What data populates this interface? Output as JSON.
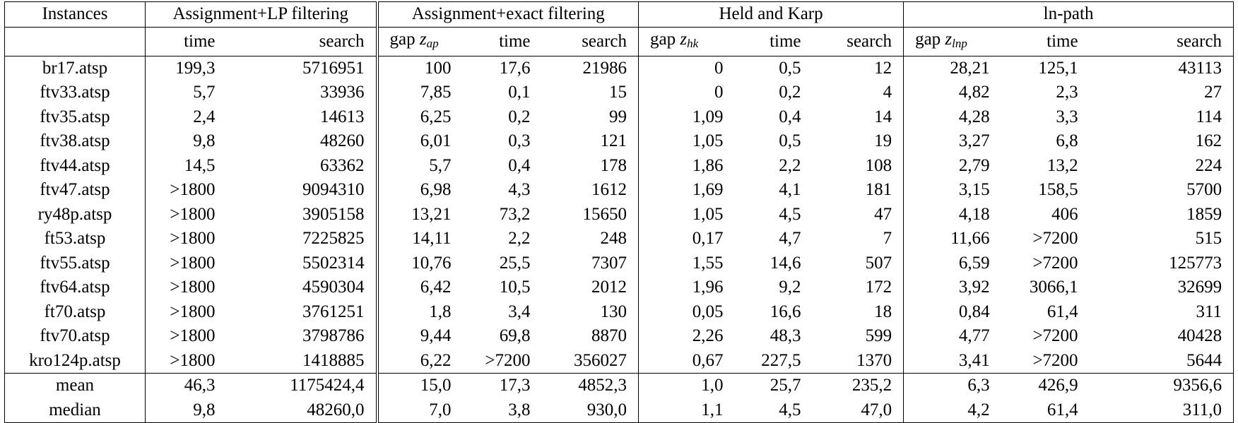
{
  "table": {
    "groups": [
      {
        "label": "Instances"
      },
      {
        "label": "Assignment+LP filtering"
      },
      {
        "label": "Assignment+exact filtering"
      },
      {
        "label": "Held and Karp"
      },
      {
        "label": "ln-path"
      }
    ],
    "subheaders": {
      "lp": [
        "time",
        "search"
      ],
      "exact": {
        "gap": "gap",
        "gap_var": "z",
        "gap_sub": "ap",
        "time": "time",
        "search": "search"
      },
      "hk": {
        "gap": "gap",
        "gap_var": "z",
        "gap_sub": "hk",
        "time": "time",
        "search": "search"
      },
      "lnp": {
        "gap": "gap",
        "gap_var": "z",
        "gap_sub": "lnp",
        "time": "time",
        "search": "search"
      }
    },
    "rows": [
      {
        "instance": "br17.atsp",
        "lp_time": "199,3",
        "lp_search": "5716951",
        "ex_gap": "100",
        "ex_time": "17,6",
        "ex_search": "21986",
        "hk_gap": "0",
        "hk_time": "0,5",
        "hk_search": "12",
        "ln_gap": "28,21",
        "ln_time": "125,1",
        "ln_search": "43113"
      },
      {
        "instance": "ftv33.atsp",
        "lp_time": "5,7",
        "lp_search": "33936",
        "ex_gap": "7,85",
        "ex_time": "0,1",
        "ex_search": "15",
        "hk_gap": "0",
        "hk_time": "0,2",
        "hk_search": "4",
        "ln_gap": "4,82",
        "ln_time": "2,3",
        "ln_search": "27"
      },
      {
        "instance": "ftv35.atsp",
        "lp_time": "2,4",
        "lp_search": "14613",
        "ex_gap": "6,25",
        "ex_time": "0,2",
        "ex_search": "99",
        "hk_gap": "1,09",
        "hk_time": "0,4",
        "hk_search": "14",
        "ln_gap": "4,28",
        "ln_time": "3,3",
        "ln_search": "114"
      },
      {
        "instance": "ftv38.atsp",
        "lp_time": "9,8",
        "lp_search": "48260",
        "ex_gap": "6,01",
        "ex_time": "0,3",
        "ex_search": "121",
        "hk_gap": "1,05",
        "hk_time": "0,5",
        "hk_search": "19",
        "ln_gap": "3,27",
        "ln_time": "6,8",
        "ln_search": "162"
      },
      {
        "instance": "ftv44.atsp",
        "lp_time": "14,5",
        "lp_search": "63362",
        "ex_gap": "5,7",
        "ex_time": "0,4",
        "ex_search": "178",
        "hk_gap": "1,86",
        "hk_time": "2,2",
        "hk_search": "108",
        "ln_gap": "2,79",
        "ln_time": "13,2",
        "ln_search": "224"
      },
      {
        "instance": "ftv47.atsp",
        "lp_time": ">1800",
        "lp_search": "9094310",
        "ex_gap": "6,98",
        "ex_time": "4,3",
        "ex_search": "1612",
        "hk_gap": "1,69",
        "hk_time": "4,1",
        "hk_search": "181",
        "ln_gap": "3,15",
        "ln_time": "158,5",
        "ln_search": "5700"
      },
      {
        "instance": "ry48p.atsp",
        "lp_time": ">1800",
        "lp_search": "3905158",
        "ex_gap": "13,21",
        "ex_time": "73,2",
        "ex_search": "15650",
        "hk_gap": "1,05",
        "hk_time": "4,5",
        "hk_search": "47",
        "ln_gap": "4,18",
        "ln_time": "406",
        "ln_search": "1859"
      },
      {
        "instance": "ft53.atsp",
        "lp_time": ">1800",
        "lp_search": "7225825",
        "ex_gap": "14,11",
        "ex_time": "2,2",
        "ex_search": "248",
        "hk_gap": "0,17",
        "hk_time": "4,7",
        "hk_search": "7",
        "ln_gap": "11,66",
        "ln_time": ">7200",
        "ln_search": "515"
      },
      {
        "instance": "ftv55.atsp",
        "lp_time": ">1800",
        "lp_search": "5502314",
        "ex_gap": "10,76",
        "ex_time": "25,5",
        "ex_search": "7307",
        "hk_gap": "1,55",
        "hk_time": "14,6",
        "hk_search": "507",
        "ln_gap": "6,59",
        "ln_time": ">7200",
        "ln_search": "125773"
      },
      {
        "instance": "ftv64.atsp",
        "lp_time": ">1800",
        "lp_search": "4590304",
        "ex_gap": "6,42",
        "ex_time": "10,5",
        "ex_search": "2012",
        "hk_gap": "1,96",
        "hk_time": "9,2",
        "hk_search": "172",
        "ln_gap": "3,92",
        "ln_time": "3066,1",
        "ln_search": "32699"
      },
      {
        "instance": "ft70.atsp",
        "lp_time": ">1800",
        "lp_search": "3761251",
        "ex_gap": "1,8",
        "ex_time": "3,4",
        "ex_search": "130",
        "hk_gap": "0,05",
        "hk_time": "16,6",
        "hk_search": "18",
        "ln_gap": "0,84",
        "ln_time": "61,4",
        "ln_search": "311"
      },
      {
        "instance": "ftv70.atsp",
        "lp_time": ">1800",
        "lp_search": "3798786",
        "ex_gap": "9,44",
        "ex_time": "69,8",
        "ex_search": "8870",
        "hk_gap": "2,26",
        "hk_time": "48,3",
        "hk_search": "599",
        "ln_gap": "4,77",
        "ln_time": ">7200",
        "ln_search": "40428"
      },
      {
        "instance": "kro124p.atsp",
        "lp_time": ">1800",
        "lp_search": "1418885",
        "ex_gap": "6,22",
        "ex_time": ">7200",
        "ex_search": "356027",
        "hk_gap": "0,67",
        "hk_time": "227,5",
        "hk_search": "1370",
        "ln_gap": "3,41",
        "ln_time": ">7200",
        "ln_search": "5644"
      }
    ],
    "summary": [
      {
        "instance": "mean",
        "lp_time": "46,3",
        "lp_search": "1175424,4",
        "ex_gap": "15,0",
        "ex_time": "17,3",
        "ex_search": "4852,3",
        "hk_gap": "1,0",
        "hk_time": "25,7",
        "hk_search": "235,2",
        "ln_gap": "6,3",
        "ln_time": "426,9",
        "ln_search": "9356,6"
      },
      {
        "instance": "median",
        "lp_time": "9,8",
        "lp_search": "48260,0",
        "ex_gap": "7,0",
        "ex_time": "3,8",
        "ex_search": "930,0",
        "hk_gap": "1,1",
        "hk_time": "4,5",
        "hk_search": "47,0",
        "ln_gap": "4,2",
        "ln_time": "61,4",
        "ln_search": "311,0"
      }
    ]
  }
}
